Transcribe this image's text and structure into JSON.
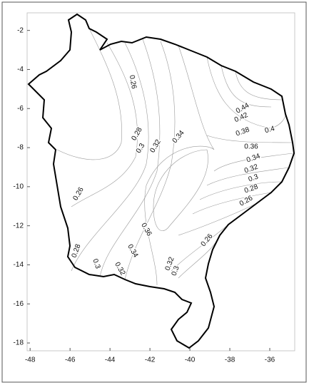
{
  "chart_data": {
    "type": "contour",
    "xlim": [
      -48.15,
      -34.75
    ],
    "ylim": [
      -1.1,
      -18.4
    ],
    "xticks": [
      -48,
      -46,
      -44,
      -42,
      -40,
      -38,
      -36
    ],
    "yticks": [
      -2,
      -4,
      -6,
      -8,
      -10,
      -12,
      -14,
      -16,
      -18
    ],
    "contour_labels": [
      0.26,
      0.28,
      0.3,
      0.32,
      0.34,
      0.44,
      0.42,
      0.4,
      0.38,
      0.36,
      0.34,
      0.32,
      0.3,
      0.28,
      0.26,
      0.26,
      0.36,
      0.28,
      0.3,
      0.34,
      0.32,
      0.32,
      0.3,
      0.26
    ]
  }
}
